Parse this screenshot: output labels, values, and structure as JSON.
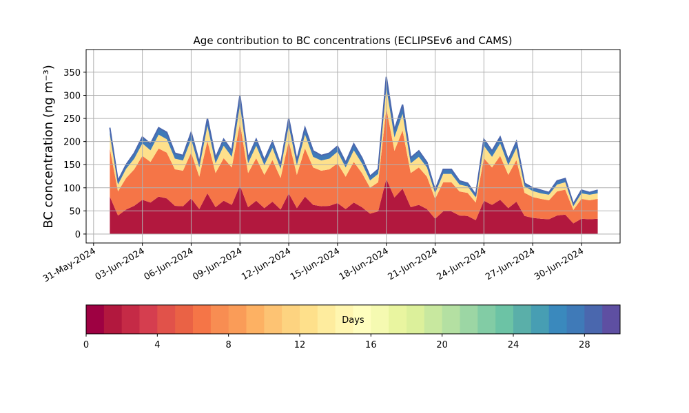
{
  "chart_data": {
    "type": "stacked_area",
    "title": "Age contribution to BC concentrations (ECLIPSEv6 and CAMS)",
    "ylabel": "BC concentration (ng m⁻³)",
    "x": [
      "2024-06-01 00:00",
      "2024-06-01 12:00",
      "2024-06-02 00:00",
      "2024-06-02 12:00",
      "2024-06-03 00:00",
      "2024-06-03 12:00",
      "2024-06-04 00:00",
      "2024-06-04 12:00",
      "2024-06-05 00:00",
      "2024-06-05 12:00",
      "2024-06-06 00:00",
      "2024-06-06 12:00",
      "2024-06-07 00:00",
      "2024-06-07 12:00",
      "2024-06-08 00:00",
      "2024-06-08 12:00",
      "2024-06-09 00:00",
      "2024-06-09 12:00",
      "2024-06-10 00:00",
      "2024-06-10 12:00",
      "2024-06-11 00:00",
      "2024-06-11 12:00",
      "2024-06-12 00:00",
      "2024-06-12 12:00",
      "2024-06-13 00:00",
      "2024-06-13 12:00",
      "2024-06-14 00:00",
      "2024-06-14 12:00",
      "2024-06-15 00:00",
      "2024-06-15 12:00",
      "2024-06-16 00:00",
      "2024-06-16 12:00",
      "2024-06-17 00:00",
      "2024-06-17 12:00",
      "2024-06-18 00:00",
      "2024-06-18 12:00",
      "2024-06-19 00:00",
      "2024-06-19 12:00",
      "2024-06-20 00:00",
      "2024-06-20 12:00",
      "2024-06-21 00:00",
      "2024-06-21 12:00",
      "2024-06-22 00:00",
      "2024-06-22 12:00",
      "2024-06-23 00:00",
      "2024-06-23 12:00",
      "2024-06-24 00:00",
      "2024-06-24 12:00",
      "2024-06-25 00:00",
      "2024-06-25 12:00",
      "2024-06-26 00:00",
      "2024-06-26 12:00",
      "2024-06-27 00:00",
      "2024-06-27 12:00",
      "2024-06-28 00:00",
      "2024-06-28 12:00",
      "2024-06-29 00:00",
      "2024-06-29 12:00",
      "2024-06-30 00:00",
      "2024-06-30 12:00",
      "2024-07-01 00:00"
    ],
    "series": [
      {
        "color": "#b2183e",
        "values": [
          81,
          40,
          53,
          61,
          74,
          68,
          81,
          77,
          61,
          60,
          77,
          54,
          88,
          58,
          72,
          63,
          105,
          58,
          72,
          56,
          70,
          53,
          88,
          56,
          81,
          63,
          60,
          61,
          67,
          54,
          68,
          58,
          44,
          49,
          119,
          79,
          98,
          58,
          63,
          54,
          33,
          49,
          49,
          40,
          39,
          30,
          72,
          63,
          74,
          56,
          70,
          39,
          35,
          33,
          32,
          40,
          42,
          23,
          33,
          32,
          33
        ]
      },
      {
        "color": "#f57547",
        "values": [
          104,
          52,
          68,
          79,
          95,
          88,
          104,
          99,
          79,
          77,
          99,
          70,
          113,
          74,
          92,
          81,
          135,
          74,
          92,
          72,
          90,
          68,
          113,
          72,
          104,
          81,
          77,
          79,
          86,
          70,
          88,
          74,
          56,
          63,
          153,
          101,
          126,
          74,
          81,
          70,
          43,
          63,
          63,
          52,
          50,
          38,
          92,
          81,
          95,
          72,
          90,
          50,
          45,
          43,
          41,
          52,
          54,
          29,
          43,
          41,
          43
        ]
      },
      {
        "color": "#fee08b",
        "values": [
          30,
          15,
          20,
          23,
          27,
          25,
          30,
          29,
          23,
          22,
          29,
          20,
          33,
          21,
          27,
          23,
          39,
          21,
          27,
          21,
          26,
          20,
          33,
          21,
          30,
          23,
          22,
          23,
          25,
          20,
          25,
          21,
          16,
          18,
          44,
          29,
          36,
          21,
          23,
          20,
          12,
          18,
          18,
          15,
          14,
          11,
          27,
          23,
          27,
          21,
          26,
          14,
          13,
          12,
          12,
          15,
          16,
          8,
          12,
          12,
          12
        ]
      },
      {
        "color": "#3f7ab8",
        "values": [
          15,
          8,
          9,
          12,
          14,
          14,
          15,
          15,
          12,
          11,
          15,
          11,
          16,
          12,
          14,
          13,
          21,
          12,
          14,
          11,
          14,
          9,
          16,
          11,
          15,
          13,
          11,
          12,
          12,
          11,
          14,
          12,
          9,
          10,
          24,
          16,
          20,
          12,
          13,
          11,
          7,
          10,
          10,
          8,
          7,
          6,
          14,
          13,
          14,
          11,
          14,
          7,
          7,
          7,
          5,
          8,
          8,
          5,
          7,
          5,
          7
        ]
      }
    ],
    "line_color": "#4a67ae",
    "xlim": [
      "2024-05-30 13:00",
      "2024-07-02 09:00"
    ],
    "xticks": [
      {
        "value": "2024-05-31",
        "label": "31-May-2024"
      },
      {
        "value": "2024-06-03",
        "label": "03-Jun-2024"
      },
      {
        "value": "2024-06-06",
        "label": "06-Jun-2024"
      },
      {
        "value": "2024-06-09",
        "label": "09-Jun-2024"
      },
      {
        "value": "2024-06-12",
        "label": "12-Jun-2024"
      },
      {
        "value": "2024-06-15",
        "label": "15-Jun-2024"
      },
      {
        "value": "2024-06-18",
        "label": "18-Jun-2024"
      },
      {
        "value": "2024-06-21",
        "label": "21-Jun-2024"
      },
      {
        "value": "2024-06-24",
        "label": "24-Jun-2024"
      },
      {
        "value": "2024-06-27",
        "label": "27-Jun-2024"
      },
      {
        "value": "2024-06-30",
        "label": "30-Jun-2024"
      }
    ],
    "ylim": [
      -19.4,
      399
    ],
    "yticks": [
      0,
      50,
      100,
      150,
      200,
      250,
      300,
      350
    ],
    "grid": true,
    "colorbar": {
      "label": "Days",
      "lim": [
        0,
        30
      ],
      "ticks": [
        0,
        4,
        8,
        12,
        16,
        20,
        24,
        28
      ],
      "colors": [
        "#9e0142",
        "#b2183e",
        "#c52a46",
        "#d53e4f",
        "#e1524a",
        "#ea6245",
        "#f57547",
        "#f88d52",
        "#fa9c58",
        "#fdb163",
        "#fdc373",
        "#fdd380",
        "#fee08b",
        "#feec9e",
        "#fff6b0",
        "#fffebe",
        "#f5fab1",
        "#e9f5a0",
        "#dcf09b",
        "#c8e89f",
        "#b4e0a2",
        "#9cd6a4",
        "#82cca5",
        "#6cc3a5",
        "#5aafa9",
        "#479eb3",
        "#3a89bd",
        "#3f7ab8",
        "#4a67ae",
        "#5e4fa2"
      ]
    }
  }
}
